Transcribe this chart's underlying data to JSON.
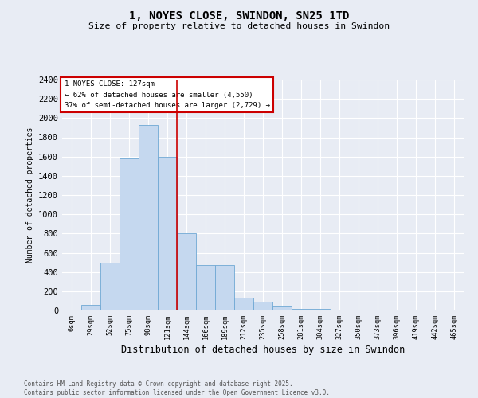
{
  "title_line1": "1, NOYES CLOSE, SWINDON, SN25 1TD",
  "title_line2": "Size of property relative to detached houses in Swindon",
  "xlabel": "Distribution of detached houses by size in Swindon",
  "ylabel": "Number of detached properties",
  "categories": [
    "6sqm",
    "29sqm",
    "52sqm",
    "75sqm",
    "98sqm",
    "121sqm",
    "144sqm",
    "166sqm",
    "189sqm",
    "212sqm",
    "235sqm",
    "258sqm",
    "281sqm",
    "304sqm",
    "327sqm",
    "350sqm",
    "373sqm",
    "396sqm",
    "419sqm",
    "442sqm",
    "465sqm"
  ],
  "values": [
    10,
    60,
    500,
    1580,
    1930,
    1600,
    800,
    470,
    470,
    130,
    90,
    40,
    20,
    20,
    10,
    5,
    2,
    2,
    2,
    2,
    2
  ],
  "bar_color": "#c5d8ef",
  "bar_edge_color": "#6fa8d4",
  "background_color": "#e8ecf4",
  "grid_color": "#ffffff",
  "red_line_x": 5.5,
  "annotation_text": "1 NOYES CLOSE: 127sqm\n← 62% of detached houses are smaller (4,550)\n37% of semi-detached houses are larger (2,729) →",
  "annotation_box_color": "#ffffff",
  "annotation_box_edge_color": "#cc0000",
  "footer_line1": "Contains HM Land Registry data © Crown copyright and database right 2025.",
  "footer_line2": "Contains public sector information licensed under the Open Government Licence v3.0.",
  "ylim": [
    0,
    2400
  ],
  "yticks": [
    0,
    200,
    400,
    600,
    800,
    1000,
    1200,
    1400,
    1600,
    1800,
    2000,
    2200,
    2400
  ]
}
